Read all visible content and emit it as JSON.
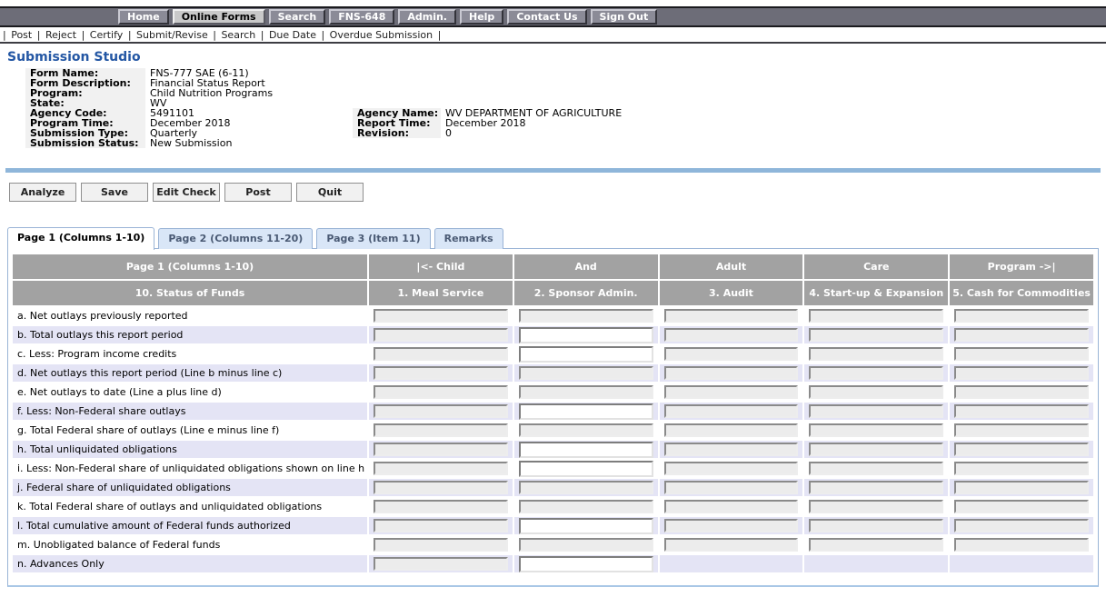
{
  "nav": {
    "items": [
      {
        "label": "Home",
        "active": false
      },
      {
        "label": "Online Forms",
        "active": true
      },
      {
        "label": "Search",
        "active": false
      },
      {
        "label": "FNS-648",
        "active": false
      },
      {
        "label": "Admin.",
        "active": false
      },
      {
        "label": "Help",
        "active": false
      },
      {
        "label": "Contact Us",
        "active": false
      },
      {
        "label": "Sign Out",
        "active": false
      }
    ]
  },
  "submenu": {
    "items": [
      "Post",
      "Reject",
      "Certify",
      "Submit/Revise",
      "Search",
      "Due Date",
      "Overdue Submission"
    ]
  },
  "page_title": "Submission Studio",
  "details": {
    "rows": [
      {
        "label": "Form Name:",
        "value": "FNS-777 SAE (6-11)"
      },
      {
        "label": "Form Description:",
        "value": "Financial Status Report"
      },
      {
        "label": "Program:",
        "value": "Child Nutrition Programs"
      },
      {
        "label": "State:",
        "value": "WV"
      },
      {
        "label": "Agency Code:",
        "value": "5491101",
        "label2": "Agency Name:",
        "value2": "WV DEPARTMENT OF AGRICULTURE"
      },
      {
        "label": "Program Time:",
        "value": "December 2018",
        "label2": "Report Time:",
        "value2": "December 2018"
      },
      {
        "label": "Submission Type:",
        "value": "Quarterly",
        "label2": "Revision:",
        "value2": "0"
      },
      {
        "label": "Submission Status:",
        "value": "New Submission"
      }
    ]
  },
  "toolbar": {
    "buttons": [
      "Analyze",
      "Save",
      "Edit Check",
      "Post",
      "Quit"
    ]
  },
  "tabs": [
    {
      "label": "Page 1 (Columns 1-10)",
      "active": true
    },
    {
      "label": "Page 2 (Columns 11-20)",
      "active": false
    },
    {
      "label": "Page 3 (Item 11)",
      "active": false
    },
    {
      "label": "Remarks",
      "active": false
    }
  ],
  "grid": {
    "header_row1": [
      "Page 1 (Columns 1-10)",
      "|<- Child",
      "And",
      "Adult",
      "Care",
      "Program ->|"
    ],
    "header_row2": [
      "10. Status of Funds",
      "1. Meal Service",
      "2. Sponsor Admin.",
      "3. Audit",
      "4. Start-up & Expansion",
      "5. Cash for Commodities"
    ],
    "rows": [
      {
        "id": "a",
        "label": "a. Net outlays previously reported",
        "shade": false,
        "cols": [
          "disabled",
          "disabled",
          "disabled",
          "disabled",
          "disabled"
        ]
      },
      {
        "id": "b",
        "label": "b. Total outlays this report period",
        "shade": true,
        "cols": [
          "disabled",
          "editable",
          "disabled",
          "disabled",
          "disabled"
        ]
      },
      {
        "id": "c",
        "label": "c. Less: Program income credits",
        "shade": false,
        "cols": [
          "disabled",
          "editable",
          "disabled",
          "disabled",
          "disabled"
        ]
      },
      {
        "id": "d",
        "label": "d. Net outlays this report period (Line b minus line c)",
        "shade": true,
        "cols": [
          "disabled",
          "disabled",
          "disabled",
          "disabled",
          "disabled"
        ]
      },
      {
        "id": "e",
        "label": "e. Net outlays to date (Line a plus line d)",
        "shade": false,
        "cols": [
          "disabled",
          "disabled",
          "disabled",
          "disabled",
          "disabled"
        ]
      },
      {
        "id": "f",
        "label": "f. Less: Non-Federal share outlays",
        "shade": true,
        "cols": [
          "disabled",
          "editable",
          "disabled",
          "disabled",
          "disabled"
        ]
      },
      {
        "id": "g",
        "label": "g. Total Federal share of outlays (Line e minus line f)",
        "shade": false,
        "cols": [
          "disabled",
          "disabled",
          "disabled",
          "disabled",
          "disabled"
        ]
      },
      {
        "id": "h",
        "label": "h. Total unliquidated obligations",
        "shade": true,
        "cols": [
          "disabled",
          "editable",
          "disabled",
          "disabled",
          "disabled"
        ]
      },
      {
        "id": "i",
        "label": "i. Less: Non-Federal share of unliquidated obligations shown on line h",
        "shade": false,
        "cols": [
          "disabled",
          "editable",
          "disabled",
          "disabled",
          "disabled"
        ]
      },
      {
        "id": "j",
        "label": "j. Federal share of unliquidated obligations",
        "shade": true,
        "cols": [
          "disabled",
          "disabled",
          "disabled",
          "disabled",
          "disabled"
        ]
      },
      {
        "id": "k",
        "label": "k. Total Federal share of outlays and unliquidated obligations",
        "shade": false,
        "cols": [
          "disabled",
          "disabled",
          "disabled",
          "disabled",
          "disabled"
        ]
      },
      {
        "id": "l",
        "label": "l. Total cumulative amount of Federal funds authorized",
        "shade": true,
        "cols": [
          "disabled",
          "editable",
          "disabled",
          "disabled",
          "disabled"
        ]
      },
      {
        "id": "m",
        "label": "m. Unobligated balance of Federal funds",
        "shade": false,
        "cols": [
          "disabled",
          "disabled",
          "disabled",
          "disabled",
          "disabled"
        ]
      },
      {
        "id": "n",
        "label": "n. Advances Only",
        "shade": true,
        "cols": [
          "disabled",
          "editable",
          "none",
          "none",
          "none"
        ]
      }
    ],
    "input_values": ""
  },
  "colors": {
    "nav_strip": "#6d6d78",
    "nav_button": "#8b8b97",
    "nav_active": "#c9c9c9",
    "header_gray": "#a2a2a2",
    "row_shade": "#e4e4f5",
    "separator_blue": "#8fb6da",
    "title_blue": "#2457a4",
    "tab_inactive_bg": "#d9e6f7",
    "tab_border": "#9ab4d6"
  }
}
